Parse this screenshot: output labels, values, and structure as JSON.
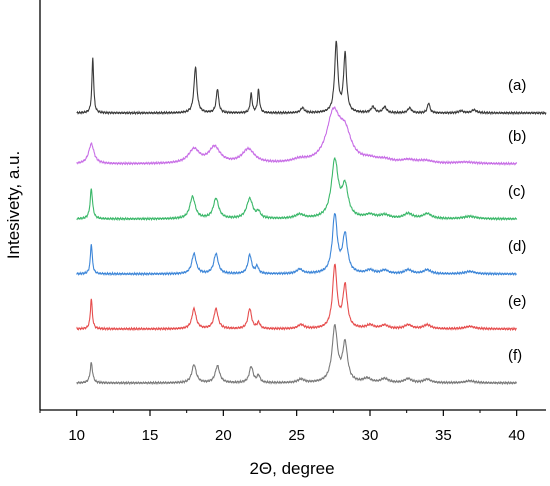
{
  "chart_data": {
    "type": "line",
    "title": "",
    "xlabel": "2Θ, degree",
    "ylabel": "Intesivety, a.u.",
    "xlim": [
      7.5,
      42
    ],
    "xticks": [
      10,
      15,
      20,
      25,
      30,
      35,
      40
    ],
    "yticks": "none",
    "grid": false,
    "legend": "labels at right end of each curve",
    "series": [
      {
        "name": "(a)",
        "color": "#3a3a3a",
        "x_range": [
          10,
          42
        ],
        "amp": 1.0,
        "peaks": [
          [
            11.1,
            0.55,
            0.07
          ],
          [
            18.1,
            0.46,
            0.12
          ],
          [
            19.6,
            0.24,
            0.1
          ],
          [
            21.9,
            0.19,
            0.08
          ],
          [
            22.4,
            0.23,
            0.08
          ],
          [
            25.4,
            0.05,
            0.15
          ],
          [
            27.7,
            0.7,
            0.13
          ],
          [
            28.3,
            0.58,
            0.12
          ],
          [
            30.2,
            0.06,
            0.15
          ],
          [
            31.0,
            0.06,
            0.15
          ],
          [
            32.7,
            0.05,
            0.15
          ],
          [
            34.0,
            0.1,
            0.1
          ],
          [
            36.2,
            0.02,
            0.2
          ],
          [
            37.1,
            0.03,
            0.2
          ]
        ]
      },
      {
        "name": "(b)",
        "color": "#c86fe6",
        "x_range": [
          10,
          40
        ],
        "amp": 1.0,
        "peaks": [
          [
            11.0,
            0.2,
            0.22
          ],
          [
            18.0,
            0.14,
            0.45
          ],
          [
            19.4,
            0.16,
            0.45
          ],
          [
            21.7,
            0.14,
            0.5
          ],
          [
            25.2,
            0.03,
            0.6
          ],
          [
            27.5,
            0.48,
            0.55
          ],
          [
            28.3,
            0.26,
            0.5
          ],
          [
            30.0,
            0.03,
            0.6
          ],
          [
            31.0,
            0.03,
            0.6
          ],
          [
            32.6,
            0.03,
            0.6
          ],
          [
            33.8,
            0.025,
            0.6
          ],
          [
            36.5,
            0.015,
            0.8
          ]
        ]
      },
      {
        "name": "(c)",
        "color": "#3cb86a",
        "x_range": [
          10,
          40
        ],
        "amp": 1.0,
        "peaks": [
          [
            11.0,
            0.3,
            0.1
          ],
          [
            17.9,
            0.22,
            0.22
          ],
          [
            19.5,
            0.2,
            0.22
          ],
          [
            21.8,
            0.2,
            0.25
          ],
          [
            22.4,
            0.06,
            0.15
          ],
          [
            25.2,
            0.04,
            0.35
          ],
          [
            27.6,
            0.57,
            0.28
          ],
          [
            28.3,
            0.3,
            0.25
          ],
          [
            30.0,
            0.035,
            0.4
          ],
          [
            31.0,
            0.035,
            0.4
          ],
          [
            32.6,
            0.05,
            0.35
          ],
          [
            33.9,
            0.05,
            0.35
          ],
          [
            36.8,
            0.025,
            0.5
          ]
        ]
      },
      {
        "name": "(d)",
        "color": "#3d86d8",
        "x_range": [
          10,
          40
        ],
        "amp": 1.0,
        "peaks": [
          [
            11.0,
            0.3,
            0.08
          ],
          [
            18.0,
            0.2,
            0.18
          ],
          [
            19.5,
            0.2,
            0.18
          ],
          [
            21.8,
            0.19,
            0.15
          ],
          [
            22.3,
            0.07,
            0.12
          ],
          [
            25.2,
            0.045,
            0.25
          ],
          [
            27.6,
            0.58,
            0.2
          ],
          [
            28.3,
            0.38,
            0.2
          ],
          [
            30.0,
            0.035,
            0.3
          ],
          [
            31.0,
            0.035,
            0.3
          ],
          [
            32.6,
            0.04,
            0.3
          ],
          [
            33.9,
            0.04,
            0.3
          ],
          [
            36.8,
            0.025,
            0.4
          ]
        ]
      },
      {
        "name": "(e)",
        "color": "#e64e4e",
        "x_range": [
          10,
          40
        ],
        "amp": 1.0,
        "peaks": [
          [
            11.0,
            0.3,
            0.08
          ],
          [
            18.0,
            0.2,
            0.17
          ],
          [
            19.5,
            0.2,
            0.17
          ],
          [
            21.8,
            0.2,
            0.15
          ],
          [
            22.4,
            0.06,
            0.12
          ],
          [
            25.3,
            0.04,
            0.25
          ],
          [
            27.6,
            0.62,
            0.18
          ],
          [
            28.3,
            0.42,
            0.18
          ],
          [
            30.0,
            0.035,
            0.3
          ],
          [
            31.0,
            0.035,
            0.3
          ],
          [
            32.6,
            0.04,
            0.3
          ],
          [
            33.9,
            0.04,
            0.3
          ],
          [
            36.8,
            0.025,
            0.4
          ]
        ]
      },
      {
        "name": "(f)",
        "color": "#7a7a7a",
        "x_range": [
          10,
          40
        ],
        "amp": 1.0,
        "peaks": [
          [
            11.0,
            0.2,
            0.1
          ],
          [
            18.0,
            0.18,
            0.18
          ],
          [
            19.6,
            0.17,
            0.18
          ],
          [
            21.9,
            0.16,
            0.16
          ],
          [
            22.4,
            0.07,
            0.12
          ],
          [
            25.3,
            0.035,
            0.25
          ],
          [
            27.6,
            0.55,
            0.22
          ],
          [
            28.3,
            0.38,
            0.2
          ],
          [
            29.8,
            0.04,
            0.3
          ],
          [
            31.0,
            0.04,
            0.3
          ],
          [
            32.6,
            0.04,
            0.3
          ],
          [
            33.9,
            0.035,
            0.3
          ],
          [
            36.8,
            0.02,
            0.4
          ]
        ]
      }
    ]
  }
}
